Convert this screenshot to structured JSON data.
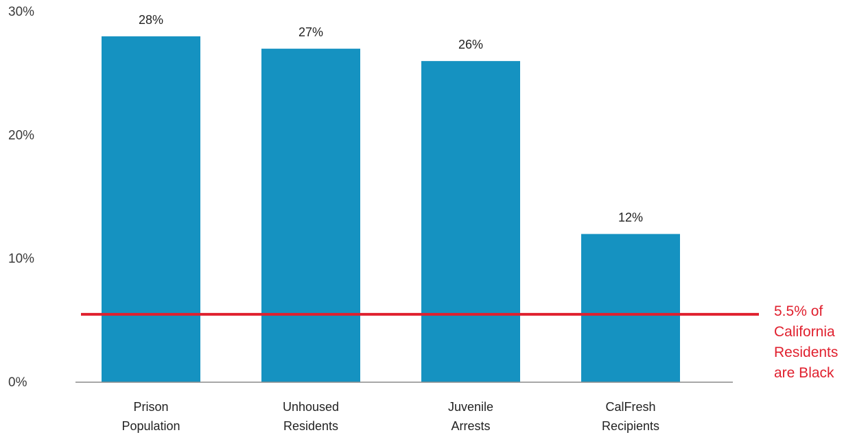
{
  "chart_data": {
    "type": "bar",
    "categories": [
      [
        "Prison",
        "Population"
      ],
      [
        "Unhoused",
        "Residents"
      ],
      [
        "Juvenile",
        "Arrests"
      ],
      [
        "CalFresh",
        "Recipients"
      ]
    ],
    "values": [
      28,
      27,
      26,
      12
    ],
    "value_labels": [
      "28%",
      "27%",
      "26%",
      "12%"
    ],
    "yticks": [
      0,
      10,
      20,
      30
    ],
    "ytick_labels": [
      "0%",
      "10%",
      "20%",
      "30%"
    ],
    "ylim": [
      0,
      30
    ],
    "grid": false,
    "bar_color": "#1592c1",
    "reference_line": {
      "value": 5.5,
      "color": "#e0202e",
      "label_lines": [
        "5.5% of",
        "California",
        "Residents",
        "are Black"
      ]
    },
    "title": "",
    "xlabel": "",
    "ylabel": ""
  }
}
